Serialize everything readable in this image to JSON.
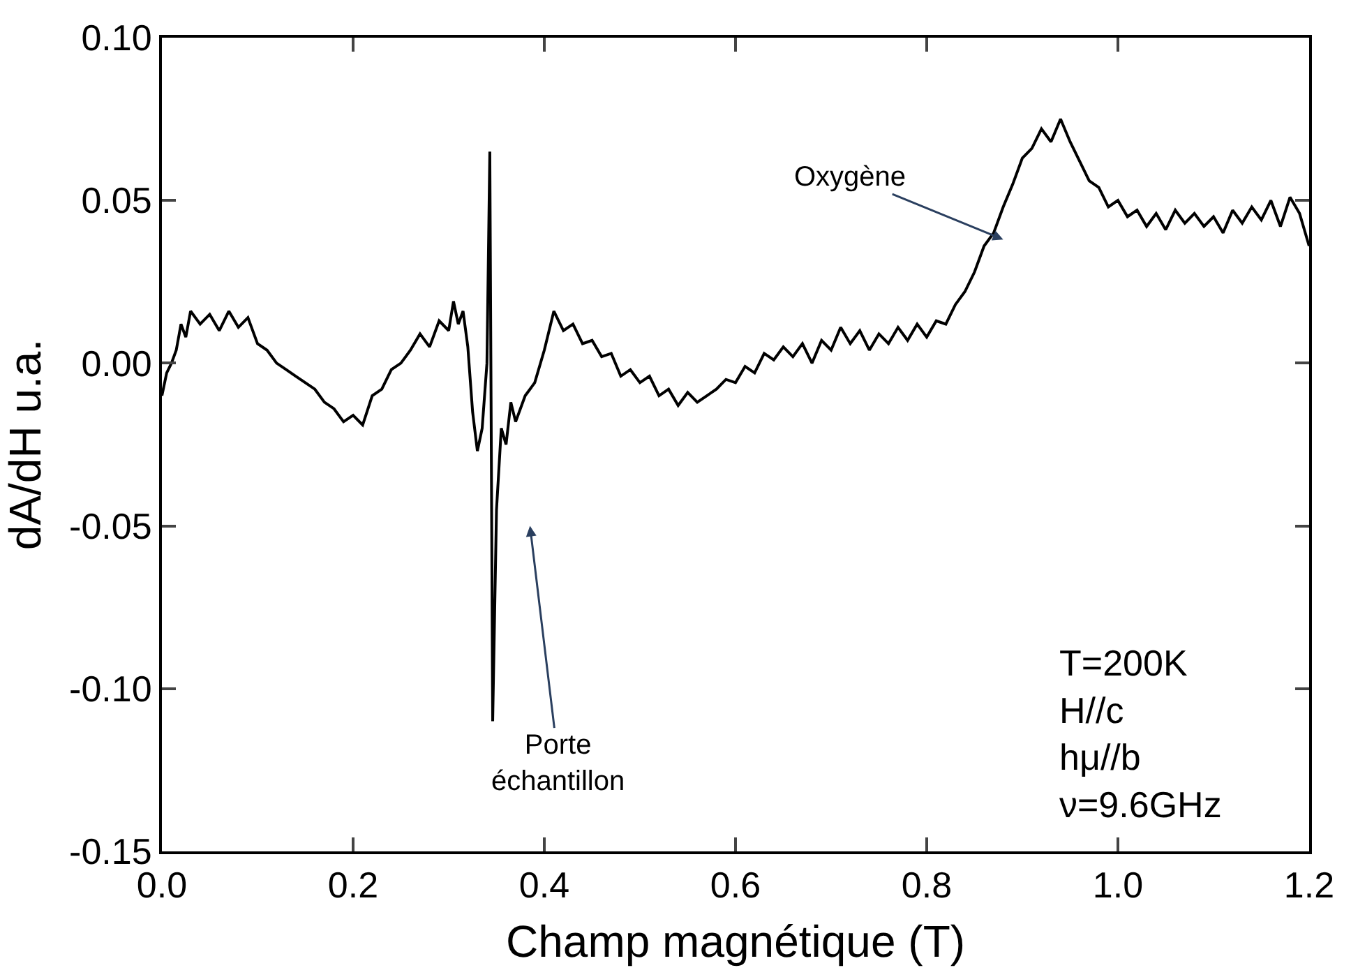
{
  "chart_data": {
    "type": "line",
    "xlabel": "Champ magnétique (T)",
    "ylabel": "dA/dH u.a.",
    "x": [
      0,
      0.005,
      0.01,
      0.015,
      0.02,
      0.025,
      0.03,
      0.04,
      0.05,
      0.06,
      0.07,
      0.08,
      0.09,
      0.1,
      0.11,
      0.12,
      0.13,
      0.14,
      0.15,
      0.16,
      0.17,
      0.18,
      0.19,
      0.2,
      0.21,
      0.22,
      0.23,
      0.24,
      0.25,
      0.26,
      0.27,
      0.28,
      0.29,
      0.3,
      0.305,
      0.31,
      0.315,
      0.32,
      0.325,
      0.33,
      0.335,
      0.34,
      0.343,
      0.346,
      0.35,
      0.355,
      0.36,
      0.365,
      0.37,
      0.38,
      0.39,
      0.4,
      0.41,
      0.42,
      0.43,
      0.44,
      0.45,
      0.46,
      0.47,
      0.48,
      0.49,
      0.5,
      0.51,
      0.52,
      0.53,
      0.54,
      0.55,
      0.56,
      0.57,
      0.58,
      0.59,
      0.6,
      0.61,
      0.62,
      0.63,
      0.64,
      0.65,
      0.66,
      0.67,
      0.68,
      0.69,
      0.7,
      0.71,
      0.72,
      0.73,
      0.74,
      0.75,
      0.76,
      0.77,
      0.78,
      0.79,
      0.8,
      0.81,
      0.82,
      0.83,
      0.84,
      0.85,
      0.86,
      0.87,
      0.88,
      0.89,
      0.9,
      0.91,
      0.92,
      0.93,
      0.94,
      0.95,
      0.96,
      0.97,
      0.98,
      0.99,
      1.0,
      1.01,
      1.02,
      1.03,
      1.04,
      1.05,
      1.06,
      1.07,
      1.08,
      1.09,
      1.1,
      1.11,
      1.12,
      1.13,
      1.14,
      1.15,
      1.16,
      1.17,
      1.18,
      1.19,
      1.2
    ],
    "series": [
      {
        "color": "#000000",
        "values": [
          -0.01,
          -0.003,
          0.0,
          0.004,
          0.012,
          0.008,
          0.016,
          0.012,
          0.015,
          0.01,
          0.016,
          0.011,
          0.014,
          0.006,
          0.004,
          0.0,
          -0.002,
          -0.004,
          -0.006,
          -0.008,
          -0.012,
          -0.014,
          -0.018,
          -0.016,
          -0.019,
          -0.01,
          -0.008,
          -0.002,
          0.0,
          0.004,
          0.009,
          0.005,
          0.013,
          0.01,
          0.019,
          0.012,
          0.016,
          0.005,
          -0.015,
          -0.027,
          -0.02,
          0.0,
          0.065,
          -0.11,
          -0.045,
          -0.02,
          -0.025,
          -0.012,
          -0.018,
          -0.01,
          -0.006,
          0.004,
          0.016,
          0.01,
          0.012,
          0.006,
          0.007,
          0.002,
          0.003,
          -0.004,
          -0.002,
          -0.006,
          -0.004,
          -0.01,
          -0.008,
          -0.013,
          -0.009,
          -0.012,
          -0.01,
          -0.008,
          -0.005,
          -0.006,
          -0.001,
          -0.003,
          0.003,
          0.001,
          0.005,
          0.002,
          0.006,
          0.0,
          0.007,
          0.004,
          0.011,
          0.006,
          0.01,
          0.004,
          0.009,
          0.006,
          0.011,
          0.007,
          0.012,
          0.008,
          0.013,
          0.012,
          0.018,
          0.022,
          0.028,
          0.036,
          0.04,
          0.048,
          0.055,
          0.063,
          0.066,
          0.072,
          0.068,
          0.075,
          0.068,
          0.062,
          0.056,
          0.054,
          0.048,
          0.05,
          0.045,
          0.047,
          0.042,
          0.046,
          0.041,
          0.047,
          0.043,
          0.046,
          0.042,
          0.045,
          0.04,
          0.047,
          0.043,
          0.048,
          0.044,
          0.05,
          0.042,
          0.051,
          0.046,
          0.036
        ]
      }
    ],
    "xlim": [
      0,
      1.2
    ],
    "xticks": [
      {
        "value": 0,
        "label": "0.0"
      },
      {
        "value": 0.2,
        "label": "0.2"
      },
      {
        "value": 0.4,
        "label": "0.4"
      },
      {
        "value": 0.6,
        "label": "0.6"
      },
      {
        "value": 0.8,
        "label": "0.8"
      },
      {
        "value": 1.0,
        "label": "1.0"
      },
      {
        "value": 1.2,
        "label": "1.2"
      }
    ],
    "ylim": [
      -0.15,
      0.1
    ],
    "yticks": [
      {
        "value": -0.15,
        "label": "-0.15"
      },
      {
        "value": -0.1,
        "label": "-0.10"
      },
      {
        "value": -0.05,
        "label": "-0.05"
      },
      {
        "value": 0,
        "label": "0.00"
      },
      {
        "value": 0.05,
        "label": "0.05"
      },
      {
        "value": 0.1,
        "label": "0.10"
      }
    ],
    "legend": false,
    "marker": "none",
    "line_style": "solid",
    "annotations": [
      {
        "text": "Oxygène",
        "x": 0.88,
        "y": 0.038
      },
      "Porte\néchantillon",
      "T=200K\nH//c\nhμ//b\nν=9.6GHz"
    ]
  }
}
